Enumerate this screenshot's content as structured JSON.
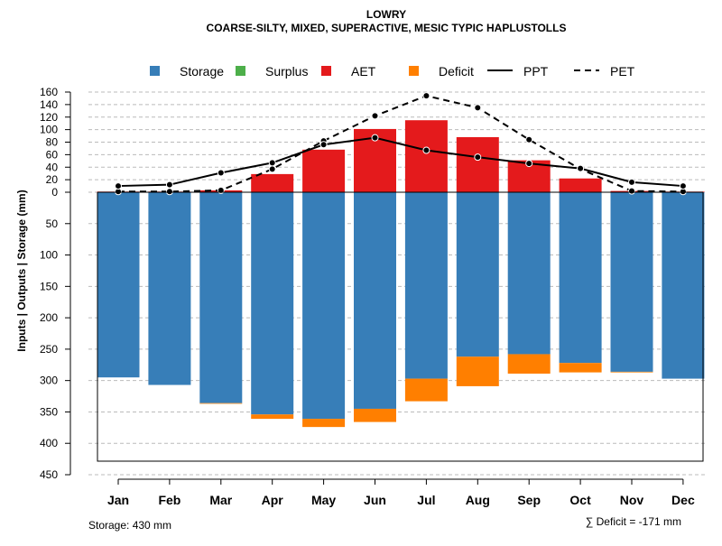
{
  "chart_data": {
    "type": "bar",
    "title": "LOWRY",
    "subtitle": "COARSE-SILTY, MIXED, SUPERACTIVE, MESIC TYPIC HAPLUSTOLLS",
    "ylabel": "Inputs | Outputs | Storage    (mm)",
    "categories": [
      "Jan",
      "Feb",
      "Mar",
      "Apr",
      "May",
      "Jun",
      "Jul",
      "Aug",
      "Sep",
      "Oct",
      "Nov",
      "Dec"
    ],
    "upper_ticks": [
      "160",
      "140",
      "120",
      "100",
      "80",
      "60",
      "40",
      "20",
      "0"
    ],
    "lower_ticks": [
      "50",
      "100",
      "150",
      "200",
      "250",
      "300",
      "350",
      "400",
      "450"
    ],
    "upper_range": [
      0,
      160
    ],
    "lower_range": [
      0,
      450
    ],
    "legend": [
      "Storage",
      "Surplus",
      "AET",
      "Deficit",
      "PPT",
      "PET"
    ],
    "colors": {
      "storage": "#377EB8",
      "surplus": "#4DAF4A",
      "aet": "#E41A1C",
      "deficit": "#FF7F00"
    },
    "series": [
      {
        "name": "Storage",
        "values": [
          295,
          307,
          336,
          354,
          361,
          345,
          297,
          262,
          258,
          272,
          286,
          297
        ]
      },
      {
        "name": "Deficit",
        "values": [
          0,
          0,
          1,
          7,
          13,
          21,
          36,
          47,
          31,
          15,
          1,
          0
        ]
      },
      {
        "name": "Surplus",
        "values": [
          0,
          0,
          0,
          0,
          0,
          0,
          0,
          0,
          0,
          0,
          0,
          0
        ]
      },
      {
        "name": "AET",
        "values": [
          1,
          1,
          3,
          29,
          68,
          101,
          115,
          88,
          51,
          22,
          2,
          1
        ]
      },
      {
        "name": "PPT",
        "values": [
          10,
          12,
          31,
          47,
          76,
          87,
          67,
          56,
          46,
          38,
          16,
          10
        ]
      },
      {
        "name": "PET",
        "values": [
          1,
          1,
          3,
          37,
          82,
          122,
          154,
          135,
          84,
          37,
          2,
          1
        ]
      }
    ],
    "storage_note": "Storage: 430 mm",
    "deficit_note": "∑ Deficit = -171 mm"
  }
}
